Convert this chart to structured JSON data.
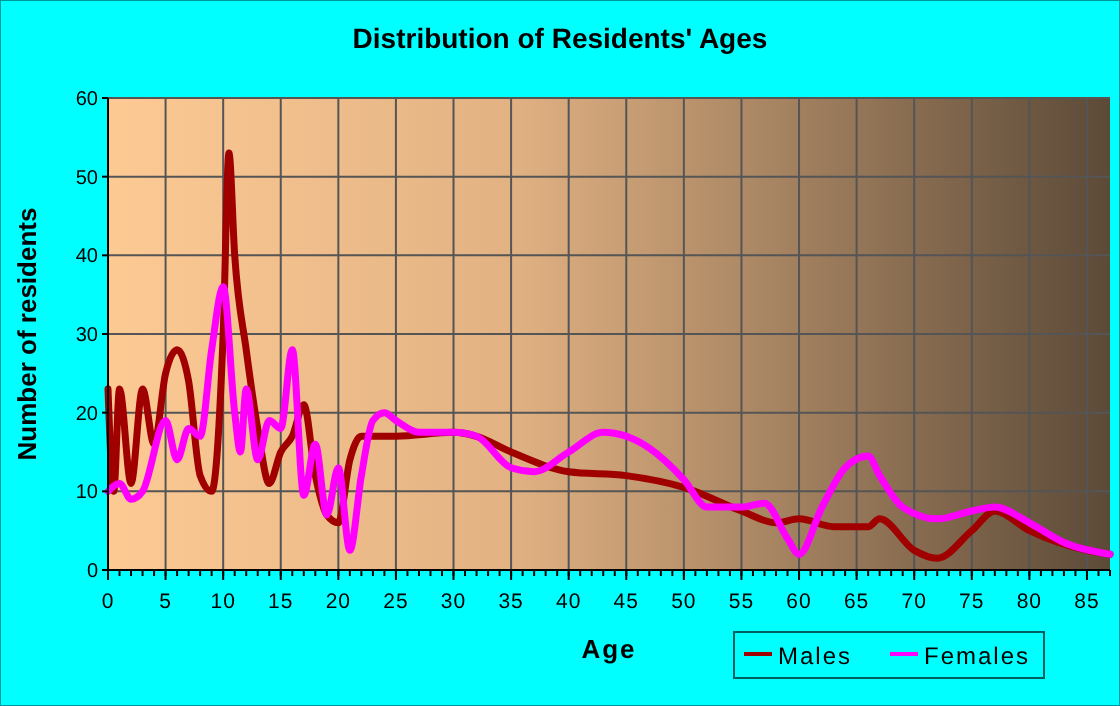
{
  "chart_data": {
    "type": "line",
    "title": "Distribution of Residents' Ages",
    "xlabel": "Age",
    "ylabel": "Number of residents",
    "xlim": [
      0,
      87
    ],
    "xticks": [
      0,
      5,
      10,
      15,
      20,
      25,
      30,
      35,
      40,
      45,
      50,
      55,
      60,
      65,
      70,
      75,
      80,
      85
    ],
    "ylim": [
      0,
      60
    ],
    "yticks": [
      0,
      10,
      20,
      30,
      40,
      50,
      60
    ],
    "grid": true,
    "legend": "bottom right",
    "line_style": "solid",
    "marker": "none",
    "series": [
      {
        "name": "Males",
        "color": "#a00000",
        "x": [
          0,
          0.5,
          1,
          2,
          3,
          4,
          5,
          6,
          7,
          8,
          9,
          10,
          10.5,
          11,
          12,
          13,
          14,
          15,
          16,
          17,
          18,
          19,
          20,
          21,
          22,
          25,
          30,
          32,
          35,
          40,
          45,
          50,
          55,
          58,
          60,
          63,
          66,
          67,
          70,
          72,
          75,
          77,
          80,
          85,
          87
        ],
        "values": [
          23,
          10,
          23,
          11,
          23,
          16,
          25,
          28,
          24,
          12,
          10,
          30,
          53,
          40,
          28,
          18,
          11,
          15,
          17,
          21,
          12,
          7,
          6,
          14,
          17,
          17,
          17.5,
          17,
          15,
          12.5,
          12,
          10.5,
          7.5,
          6,
          6.5,
          5.5,
          5.5,
          6.5,
          2.5,
          1.5,
          5,
          7.5,
          5,
          2.5,
          2
        ]
      },
      {
        "name": "Females",
        "color": "#ff00ff",
        "x": [
          0,
          1,
          2,
          3,
          5,
          6,
          7,
          8,
          9,
          10,
          11,
          11.5,
          12,
          13,
          14,
          15,
          16,
          17,
          18,
          19,
          20,
          21,
          22,
          23,
          24,
          25,
          27,
          30,
          32,
          35,
          37,
          40,
          43,
          47,
          50,
          52,
          55,
          57,
          59,
          60,
          62,
          64,
          66,
          67,
          69,
          72,
          75,
          77,
          80,
          83,
          87
        ],
        "values": [
          10,
          11,
          9,
          10,
          19,
          14,
          18,
          17,
          28,
          36,
          20,
          15,
          23,
          14,
          19,
          18,
          28,
          9.5,
          16,
          7,
          13,
          2.5,
          12,
          19,
          20,
          19,
          17.5,
          17.5,
          17,
          13,
          12.5,
          15,
          17.5,
          15.5,
          11.5,
          8,
          8,
          8.5,
          4,
          2,
          8,
          13,
          14.5,
          12,
          8,
          6.5,
          7.5,
          8,
          6,
          3.5,
          2
        ]
      }
    ]
  }
}
